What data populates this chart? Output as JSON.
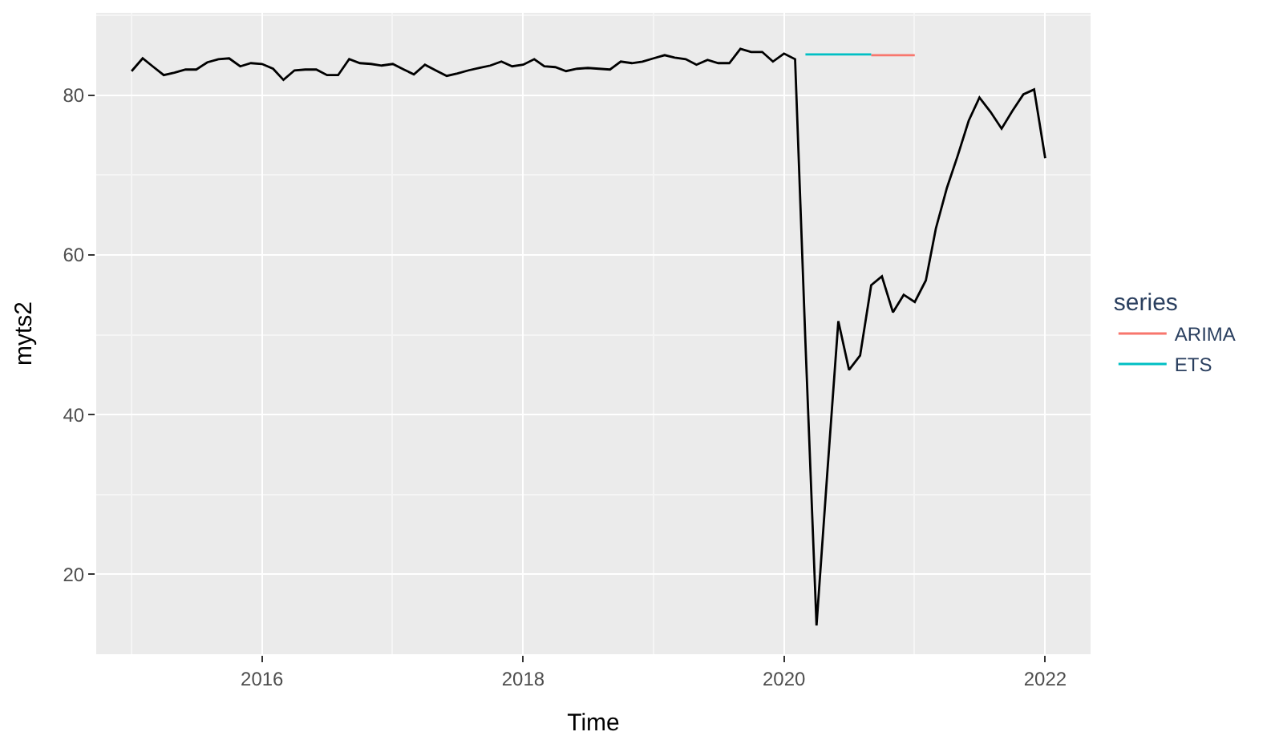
{
  "chart_data": {
    "type": "line",
    "xlabel": "Time",
    "ylabel": "myts2",
    "legend_title": "series",
    "legend": "right",
    "grid": true,
    "marker": "none",
    "line_style": "solid",
    "xlim": [
      "2014-09-24",
      "2022-05-08"
    ],
    "xticks": [
      {
        "value": "2016-01-01",
        "label": "2016"
      },
      {
        "value": "2018-01-01",
        "label": "2018"
      },
      {
        "value": "2020-01-01",
        "label": "2020"
      },
      {
        "value": "2022-01-01",
        "label": "2022"
      }
    ],
    "ylim": [
      10,
      90.3
    ],
    "yticks": [
      20,
      40,
      60,
      80
    ],
    "series": [
      {
        "color": "#000000",
        "x": [
          "2015-01",
          "2015-02",
          "2015-03",
          "2015-04",
          "2015-05",
          "2015-06",
          "2015-07",
          "2015-08",
          "2015-09",
          "2015-10",
          "2015-11",
          "2015-12",
          "2016-01",
          "2016-02",
          "2016-03",
          "2016-04",
          "2016-05",
          "2016-06",
          "2016-07",
          "2016-08",
          "2016-09",
          "2016-10",
          "2016-11",
          "2016-12",
          "2017-01",
          "2017-02",
          "2017-03",
          "2017-04",
          "2017-05",
          "2017-06",
          "2017-07",
          "2017-08",
          "2017-09",
          "2017-10",
          "2017-11",
          "2017-12",
          "2018-01",
          "2018-02",
          "2018-03",
          "2018-04",
          "2018-05",
          "2018-06",
          "2018-07",
          "2018-08",
          "2018-09",
          "2018-10",
          "2018-11",
          "2018-12",
          "2019-01",
          "2019-02",
          "2019-03",
          "2019-04",
          "2019-05",
          "2019-06",
          "2019-07",
          "2019-08",
          "2019-09",
          "2019-10",
          "2019-11",
          "2019-12",
          "2020-01",
          "2020-02",
          "2020-03",
          "2020-04",
          "2020-05",
          "2020-06",
          "2020-07",
          "2020-08",
          "2020-09",
          "2020-10",
          "2020-11",
          "2020-12",
          "2021-01",
          "2021-02",
          "2021-03",
          "2021-04",
          "2021-05",
          "2021-06",
          "2021-07",
          "2021-08",
          "2021-09",
          "2021-10",
          "2021-11",
          "2021-12",
          "2022-01"
        ],
        "values": [
          83.0,
          84.6,
          83.6,
          82.5,
          82.8,
          83.2,
          83.2,
          84.1,
          84.5,
          84.6,
          83.6,
          84.0,
          83.9,
          83.3,
          81.9,
          83.1,
          83.2,
          83.2,
          82.5,
          82.5,
          84.5,
          84.0,
          83.9,
          83.7,
          83.9,
          83.2,
          82.6,
          83.8,
          83.1,
          82.4,
          82.7,
          83.1,
          83.4,
          83.7,
          84.2,
          83.6,
          83.8,
          84.5,
          83.6,
          83.5,
          83.0,
          83.3,
          83.4,
          83.3,
          83.2,
          84.2,
          84.0,
          84.2,
          84.6,
          85.0,
          84.7,
          84.5,
          83.8,
          84.4,
          84.0,
          84.0,
          85.8,
          85.4,
          85.4,
          84.2,
          85.2,
          84.5,
          49.0,
          13.6,
          32.6,
          51.7,
          45.6,
          47.4,
          56.2,
          57.3,
          52.8,
          55.0,
          54.1,
          56.8,
          63.3,
          68.4,
          72.4,
          76.8,
          79.7,
          77.9,
          75.8,
          78.0,
          80.1,
          80.7,
          72.1
        ]
      },
      {
        "name": "ARIMA",
        "color": "#f8766d",
        "x": [
          "2020-09",
          "2020-10",
          "2020-11",
          "2020-12",
          "2021-01"
        ],
        "values": [
          85.0,
          85.0,
          85.0,
          85.0,
          85.0
        ]
      },
      {
        "name": "ETS",
        "color": "#00bfc4",
        "x": [
          "2020-03",
          "2020-04",
          "2020-05",
          "2020-06",
          "2020-07",
          "2020-08",
          "2020-09"
        ],
        "values": [
          85.1,
          85.1,
          85.1,
          85.1,
          85.1,
          85.1,
          85.1
        ]
      }
    ]
  }
}
